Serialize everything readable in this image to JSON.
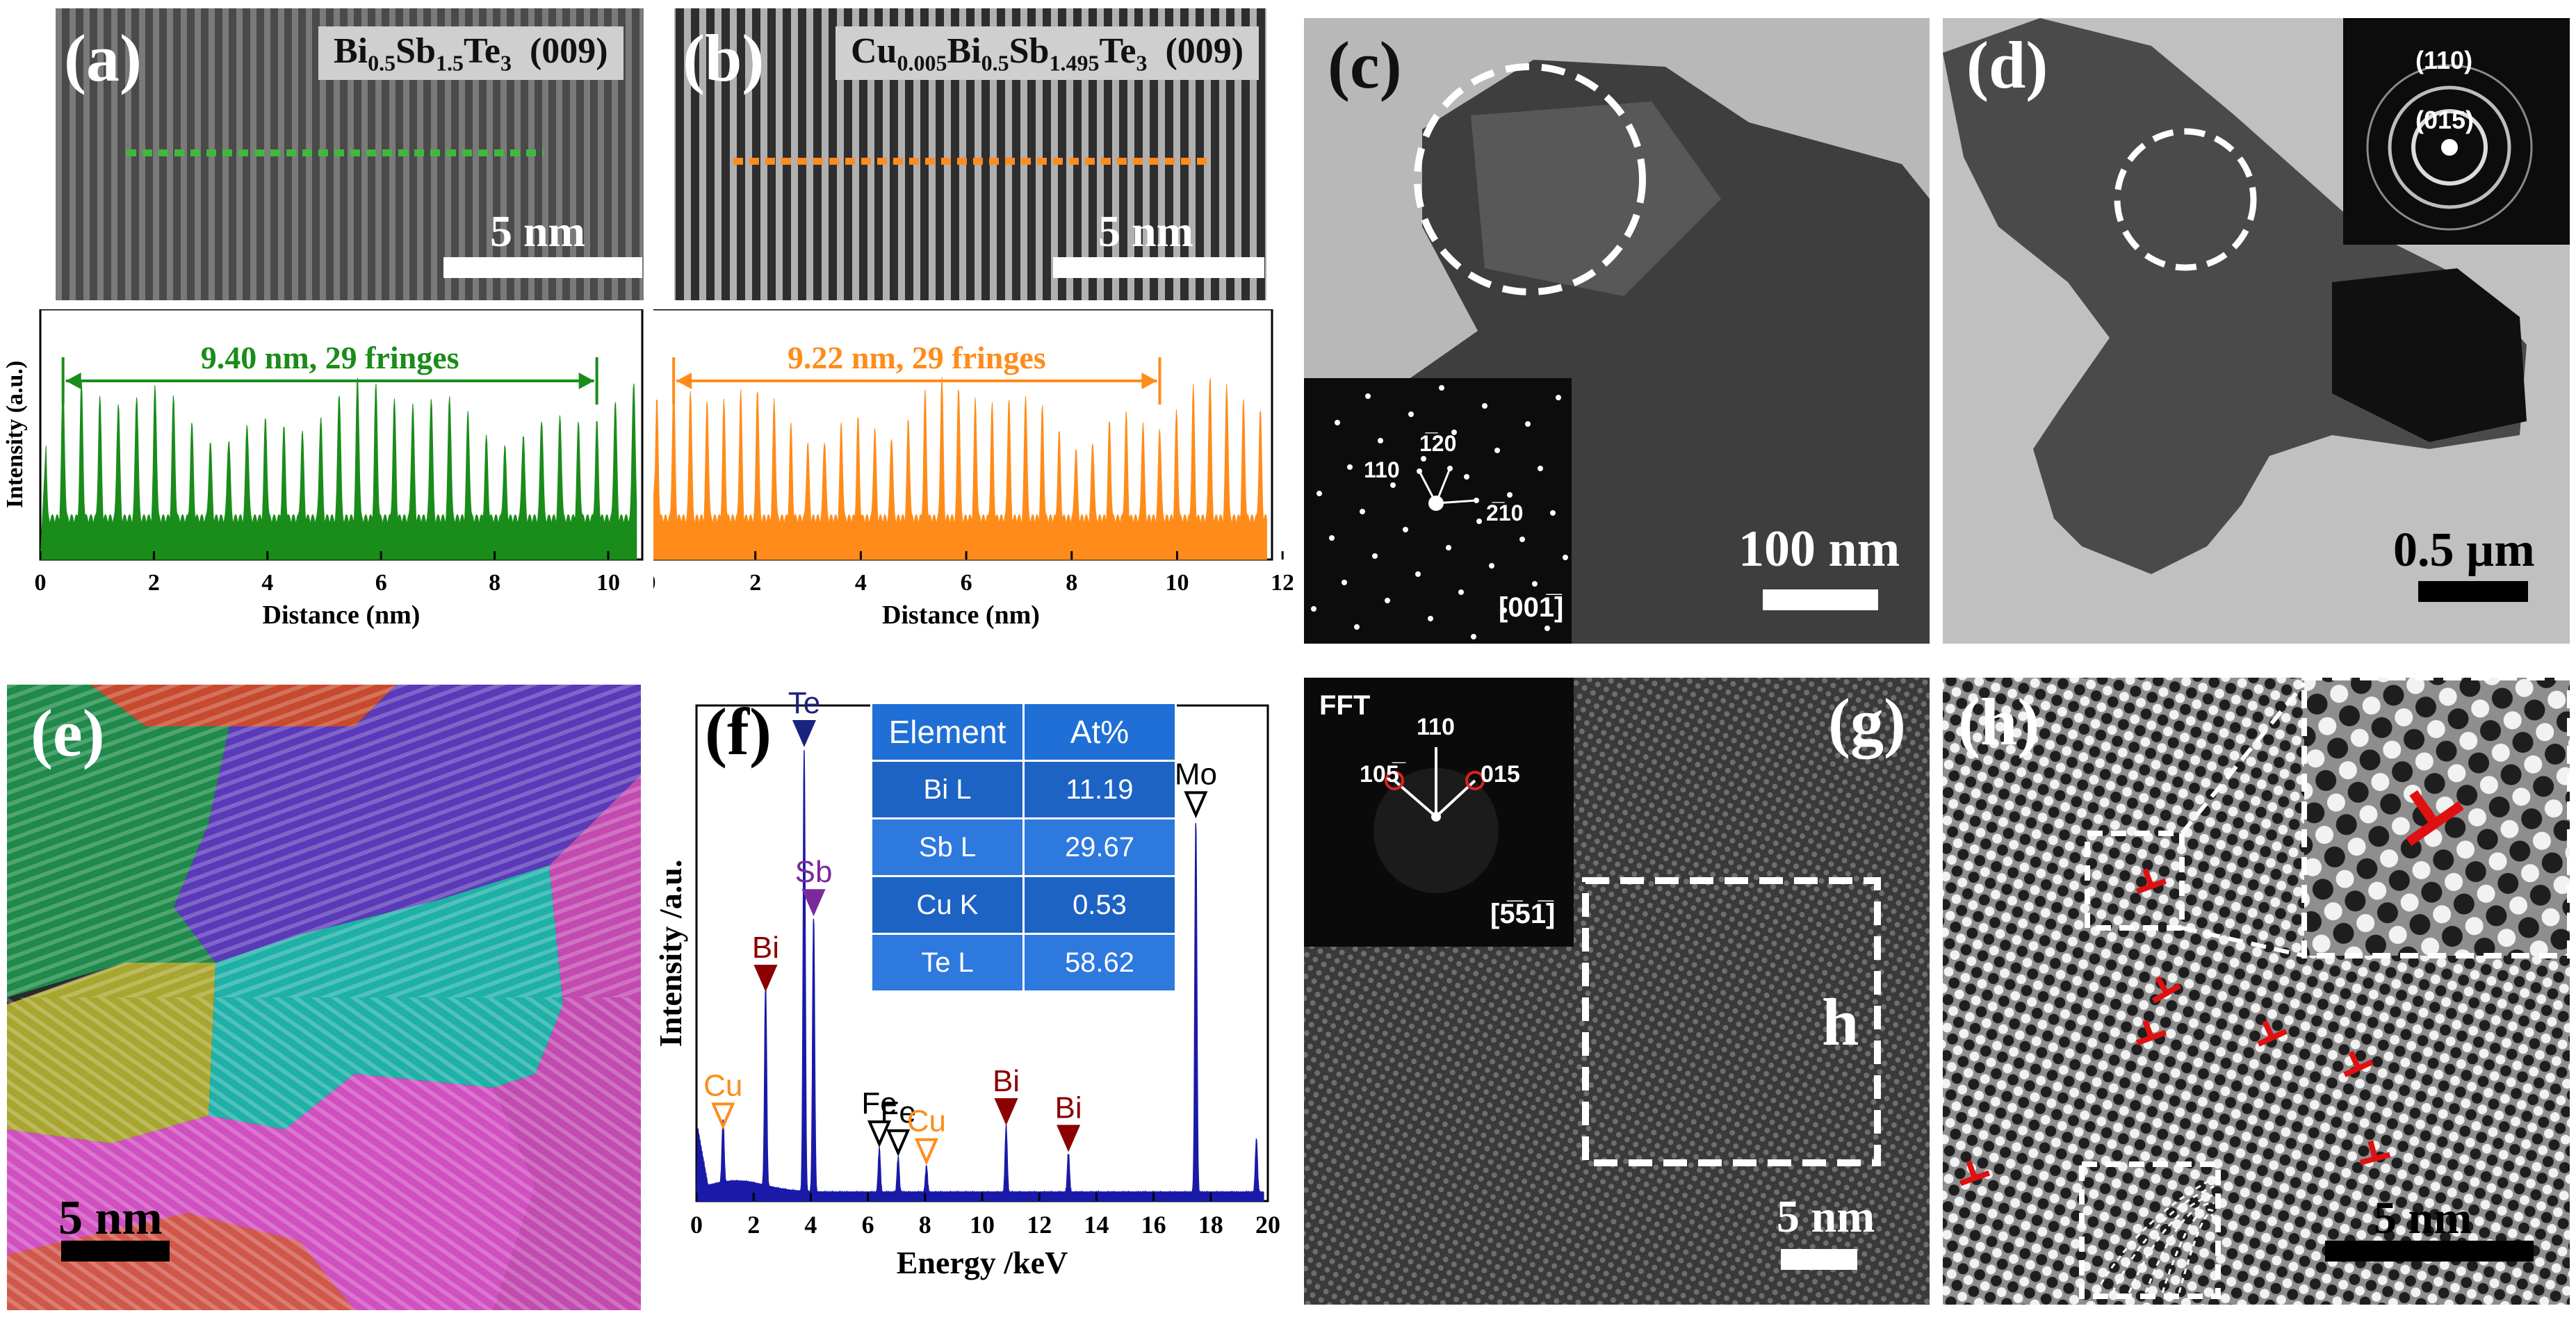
{
  "panels": {
    "a": {
      "label": "(a)",
      "title": "Bi",
      "title_sub1": "0.5",
      "title_mid": "Sb",
      "title_sub2": "1.5",
      "title_end": "Te",
      "title_sub3": "3",
      "title_plane": "(009)",
      "scale": "5 nm"
    },
    "b": {
      "label": "(b)",
      "title": "Cu",
      "title_sub0": "0.005",
      "title_bi": "Bi",
      "title_sub1": "0.5",
      "title_mid": "Sb",
      "title_sub2": "1.495",
      "title_end": "Te",
      "title_sub3": "3",
      "title_plane": "(009)",
      "scale": "5 nm"
    },
    "c": {
      "label": "(c)",
      "scale": "100 nm",
      "saed_zone": "[001̅]",
      "spot_110": "110",
      "spot_120": "1̅20",
      "spot_210": "2̅10"
    },
    "d": {
      "label": "(d)",
      "scale": "0.5 µm",
      "ring_110": "(110)",
      "ring_015": "(015)"
    },
    "e": {
      "label": "(e)",
      "scale": "5 nm"
    },
    "f": {
      "label": "(f)"
    },
    "g": {
      "label": "(g)",
      "fft": "FFT",
      "spot_110": "110",
      "spot_105": "105̅",
      "spot_015": "015",
      "zone": "[5̅51̅]",
      "box_label": "h",
      "scale": "5 nm"
    },
    "h": {
      "label": "(h)",
      "scale": "5 nm"
    }
  },
  "chart_data": [
    {
      "type": "line",
      "panel": "a",
      "xlabel": "Distance (nm)",
      "ylabel": "Intensity (a.u.)",
      "xlim": [
        0,
        10.6
      ],
      "xticks": [
        0,
        2,
        4,
        6,
        8,
        10
      ],
      "annotation": "9.40 nm, 29 fringes",
      "annotation_range": [
        0.4,
        9.8
      ],
      "fringes": 29,
      "color": "#1a8c1a"
    },
    {
      "type": "line",
      "panel": "b",
      "xlabel": "Distance (nm)",
      "ylabel": "Intensity (a.u.)",
      "xlim": [
        0,
        11.8
      ],
      "xticks": [
        0,
        2,
        4,
        6,
        8,
        10,
        12
      ],
      "annotation": "9.22 nm, 29 fringes",
      "annotation_range": [
        0.45,
        9.67
      ],
      "fringes": 29,
      "color": "#ff8c1a"
    },
    {
      "type": "line",
      "panel": "f",
      "xlabel": "Energy /keV",
      "ylabel": "Intensity /a.u.",
      "xlim": [
        0,
        20
      ],
      "xticks": [
        0,
        2,
        4,
        6,
        8,
        10,
        12,
        14,
        16,
        18,
        20
      ],
      "color": "#1a1aa8",
      "peaks": [
        {
          "label": "Cu",
          "energy": 0.93,
          "height": 0.14,
          "color": "#ff8c1a",
          "marker": "open"
        },
        {
          "label": "Bi",
          "energy": 2.42,
          "height": 0.45,
          "color": "#8b0000",
          "marker": "filled"
        },
        {
          "label": "Te",
          "energy": 3.77,
          "height": 1.0,
          "color": "#1a237e",
          "marker": "filled"
        },
        {
          "label": "Sb",
          "energy": 4.1,
          "height": 0.62,
          "color": "#7b2a9e",
          "marker": "filled"
        },
        {
          "label": "Fe",
          "energy": 6.4,
          "height": 0.1,
          "color": "#000000",
          "marker": "open"
        },
        {
          "label": "Fe",
          "energy": 7.06,
          "height": 0.08,
          "color": "#000000",
          "marker": "open"
        },
        {
          "label": "Cu",
          "energy": 8.05,
          "height": 0.06,
          "color": "#ff8c1a",
          "marker": "open"
        },
        {
          "label": "Bi",
          "energy": 10.84,
          "height": 0.15,
          "color": "#8b0000",
          "marker": "filled"
        },
        {
          "label": "Bi",
          "energy": 13.02,
          "height": 0.09,
          "color": "#8b0000",
          "marker": "filled"
        },
        {
          "label": "Mo",
          "energy": 17.48,
          "height": 0.84,
          "color": "#000000",
          "marker": "open"
        },
        {
          "label": "",
          "energy": 19.6,
          "height": 0.12,
          "color": "#000000",
          "marker": "none"
        }
      ],
      "table": {
        "headers": [
          "Element",
          "At%"
        ],
        "rows": [
          [
            "Bi L",
            "11.19"
          ],
          [
            "Sb L",
            "29.67"
          ],
          [
            "Cu K",
            "0.53"
          ],
          [
            "Te L",
            "58.62"
          ]
        ]
      }
    }
  ]
}
